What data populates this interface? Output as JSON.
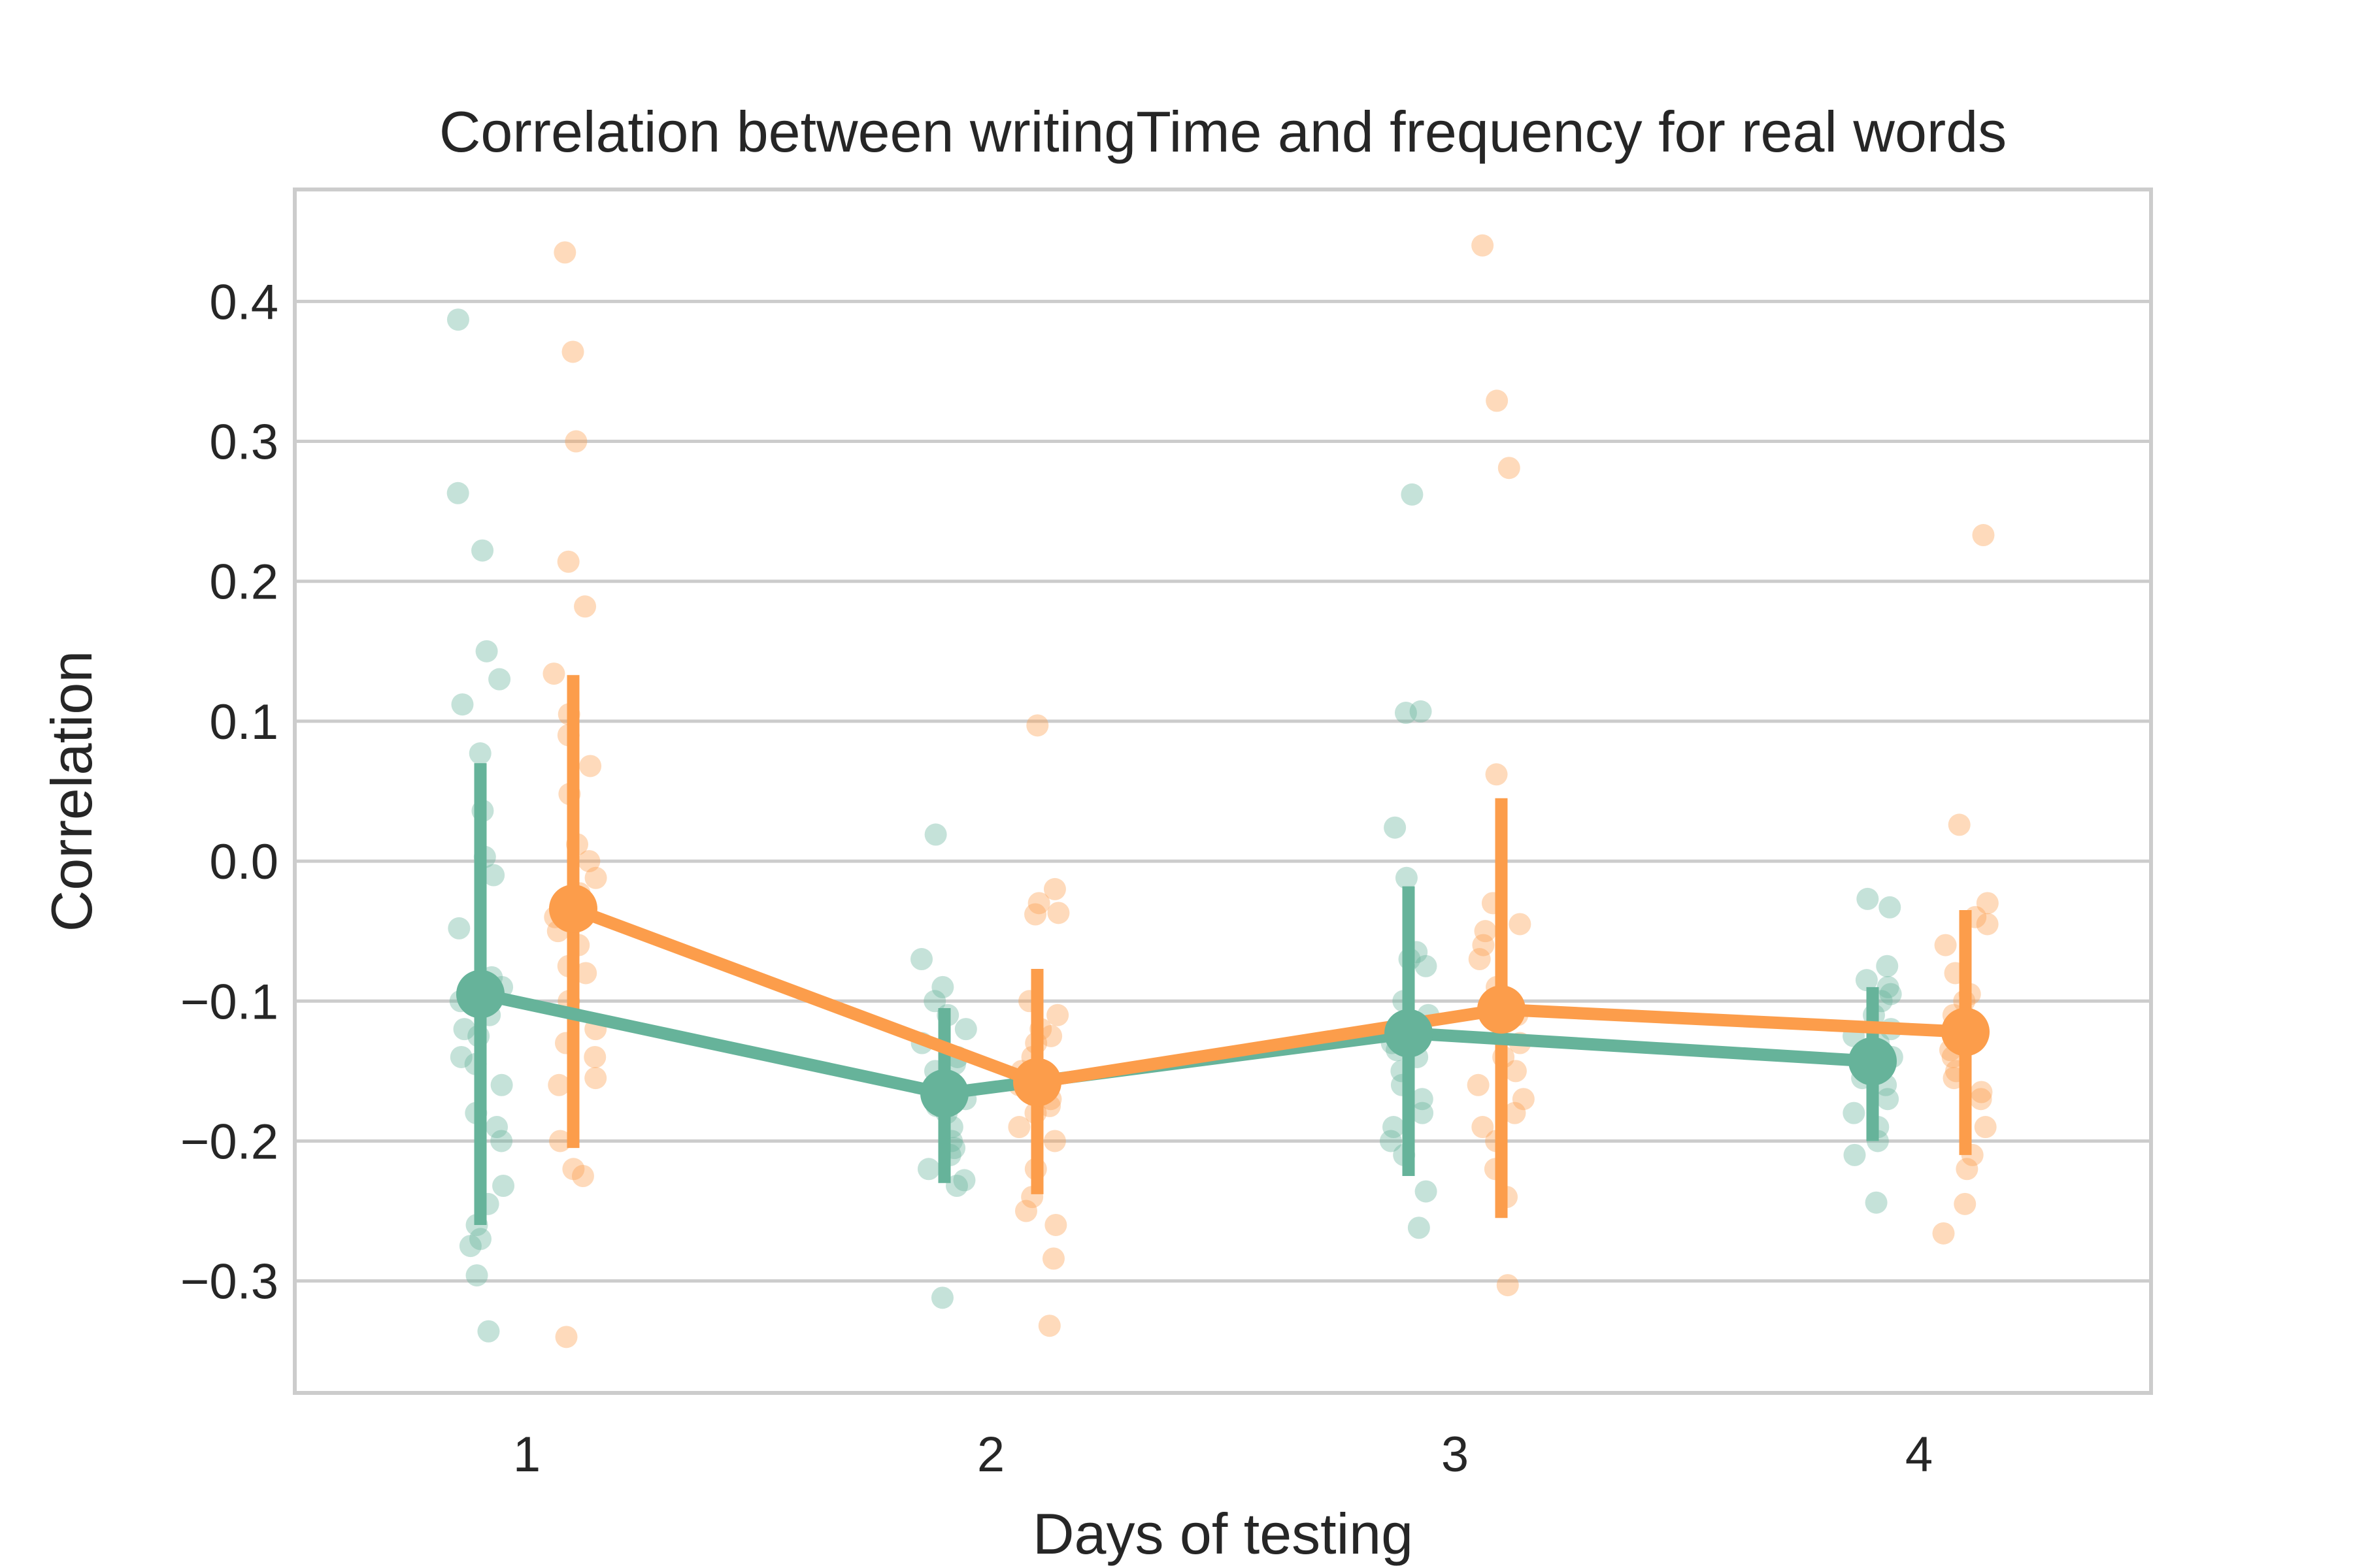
{
  "chart_data": {
    "type": "scatter",
    "title": "Correlation between writingTime and frequency for real words",
    "xlabel": "Days of testing",
    "ylabel": "Correlation",
    "categories": [
      "1",
      "2",
      "3",
      "4"
    ],
    "ylim": [
      -0.38,
      0.48
    ],
    "yticks": [
      -0.3,
      -0.2,
      -0.1,
      0.0,
      0.1,
      0.2,
      0.3,
      0.4
    ],
    "ytick_labels": [
      "−0.3",
      "−0.2",
      "−0.1",
      "0.0",
      "0.1",
      "0.2",
      "0.3",
      "0.4"
    ],
    "grid": "horizontal",
    "legend": "none",
    "series": [
      {
        "color": "#66b39a",
        "means": [
          -0.095,
          -0.166,
          -0.123,
          -0.143
        ],
        "ci_low": [
          -0.26,
          -0.23,
          -0.225,
          -0.2
        ],
        "ci_high": [
          0.07,
          -0.105,
          -0.018,
          -0.09
        ],
        "points": [
          [
            0.387,
            0.263,
            0.222,
            0.15,
            0.13,
            0.112,
            0.077,
            0.036,
            0.003,
            -0.01,
            -0.048,
            -0.083,
            -0.09,
            -0.1,
            -0.11,
            -0.125,
            -0.145,
            -0.16,
            -0.18,
            -0.2,
            -0.232,
            -0.245,
            -0.26,
            -0.27,
            -0.275,
            -0.296,
            -0.336,
            -0.12,
            -0.14,
            -0.19
          ],
          [
            0.019,
            -0.07,
            -0.09,
            -0.1,
            -0.11,
            -0.12,
            -0.13,
            -0.14,
            -0.15,
            -0.16,
            -0.17,
            -0.18,
            -0.19,
            -0.2,
            -0.21,
            -0.22,
            -0.228,
            -0.232,
            -0.312,
            -0.145,
            -0.175,
            -0.205
          ],
          [
            0.262,
            0.107,
            0.106,
            0.024,
            -0.012,
            -0.065,
            -0.07,
            -0.075,
            -0.1,
            -0.11,
            -0.12,
            -0.13,
            -0.14,
            -0.15,
            -0.16,
            -0.17,
            -0.18,
            -0.19,
            -0.2,
            -0.21,
            -0.236,
            -0.262,
            -0.115,
            -0.135
          ],
          [
            -0.027,
            -0.033,
            -0.075,
            -0.085,
            -0.09,
            -0.1,
            -0.11,
            -0.12,
            -0.13,
            -0.14,
            -0.15,
            -0.16,
            -0.17,
            -0.18,
            -0.19,
            -0.2,
            -0.21,
            -0.244,
            -0.095,
            -0.125,
            -0.155
          ]
        ]
      },
      {
        "color": "#fc9d4b",
        "means": [
          -0.034,
          -0.158,
          -0.106,
          -0.122
        ],
        "ci_low": [
          -0.205,
          -0.238,
          -0.255,
          -0.21
        ],
        "ci_high": [
          0.133,
          -0.077,
          0.045,
          -0.035
        ],
        "points": [
          [
            0.435,
            0.364,
            0.3,
            0.214,
            0.182,
            0.134,
            0.105,
            0.09,
            0.068,
            0.048,
            0.012,
            0.0,
            -0.012,
            -0.023,
            -0.04,
            -0.06,
            -0.075,
            -0.08,
            -0.1,
            -0.12,
            -0.14,
            -0.155,
            -0.16,
            -0.2,
            -0.22,
            -0.225,
            -0.34,
            -0.05,
            -0.13
          ],
          [
            0.097,
            -0.02,
            -0.03,
            -0.037,
            -0.038,
            -0.1,
            -0.11,
            -0.12,
            -0.13,
            -0.14,
            -0.15,
            -0.16,
            -0.17,
            -0.18,
            -0.19,
            -0.2,
            -0.22,
            -0.24,
            -0.25,
            -0.26,
            -0.284,
            -0.332,
            -0.125,
            -0.175
          ],
          [
            0.44,
            0.329,
            0.281,
            0.062,
            -0.03,
            -0.045,
            -0.05,
            -0.06,
            -0.07,
            -0.09,
            -0.11,
            -0.13,
            -0.15,
            -0.16,
            -0.17,
            -0.18,
            -0.2,
            -0.22,
            -0.24,
            -0.303,
            -0.1,
            -0.14,
            -0.19
          ],
          [
            0.233,
            0.026,
            -0.03,
            -0.04,
            -0.045,
            -0.06,
            -0.08,
            -0.095,
            -0.1,
            -0.11,
            -0.12,
            -0.135,
            -0.14,
            -0.15,
            -0.155,
            -0.17,
            -0.19,
            -0.21,
            -0.22,
            -0.245,
            -0.266,
            -0.115,
            -0.165
          ]
        ]
      }
    ]
  }
}
